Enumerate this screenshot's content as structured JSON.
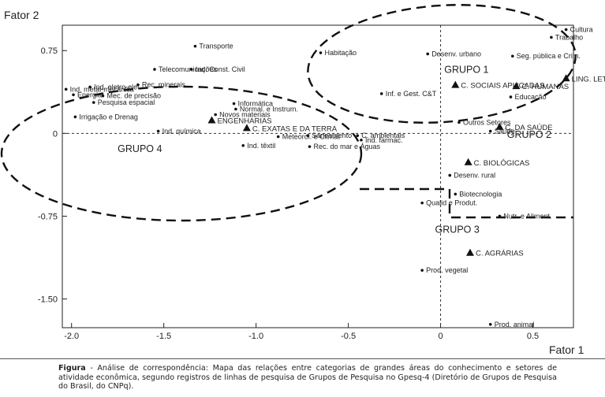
{
  "chart_data": {
    "type": "scatter",
    "ylabel": "Fator 2",
    "xlabel": "Fator 1",
    "xlim": [
      -2.05,
      0.72
    ],
    "ylim": [
      -1.76,
      0.98
    ],
    "xticks": [
      {
        "v": -2.0,
        "label": "-2.0"
      },
      {
        "v": -1.5,
        "label": "-1.5"
      },
      {
        "v": -1.0,
        "label": "-1.0"
      },
      {
        "v": -0.5,
        "label": "-0.5"
      },
      {
        "v": 0.0,
        "label": "0"
      },
      {
        "v": 0.5,
        "label": "0.5"
      }
    ],
    "yticks": [
      {
        "v": 0.75,
        "label": "0.75"
      },
      {
        "v": 0.0,
        "label": "0"
      },
      {
        "v": -0.75,
        "label": "-0.75"
      },
      {
        "v": -1.5,
        "label": "-1.50"
      }
    ],
    "areas": [
      {
        "label": "C. SOCIAIS APLICADAS",
        "x": 0.08,
        "y": 0.44
      },
      {
        "label": "C. HUMANAS",
        "x": 0.41,
        "y": 0.43
      },
      {
        "label": "LING. LETRAS E ARTES",
        "x": 0.68,
        "y": 0.5
      },
      {
        "label": "ENGENHARIAS",
        "x": -1.24,
        "y": 0.12
      },
      {
        "label": "C. EXATAS E DA TERRA",
        "x": -1.05,
        "y": 0.05
      },
      {
        "label": "C. DA SAÚDE",
        "x": 0.32,
        "y": 0.06
      },
      {
        "label": "C. BIOLÓGICAS",
        "x": 0.15,
        "y": -0.26
      },
      {
        "label": "C. AGRÁRIAS",
        "x": 0.16,
        "y": -1.08
      }
    ],
    "sectors": [
      {
        "label": "Cultura",
        "x": 0.68,
        "y": 0.94
      },
      {
        "label": "Trabalho",
        "x": 0.6,
        "y": 0.87
      },
      {
        "label": "Seg. pública e Crim.",
        "x": 0.39,
        "y": 0.7
      },
      {
        "label": "Educação",
        "x": 0.38,
        "y": 0.33
      },
      {
        "label": "Desenv. urbano",
        "x": -0.07,
        "y": 0.72
      },
      {
        "label": "Habitação",
        "x": -0.65,
        "y": 0.73
      },
      {
        "label": "Inf. e Gest. C&T",
        "x": -0.32,
        "y": 0.36
      },
      {
        "label": "Outros Setores",
        "x": 0.1,
        "y": 0.1
      },
      {
        "label": "Saúde",
        "x": 0.27,
        "y": 0.02
      },
      {
        "label": "Desenv. rural",
        "x": 0.05,
        "y": -0.38
      },
      {
        "label": "Biotecnologia",
        "x": 0.08,
        "y": -0.55
      },
      {
        "label": "Qualid e Produt.",
        "x": -0.1,
        "y": -0.63
      },
      {
        "label": "Nutr. e Aliment.",
        "x": 0.32,
        "y": -0.75
      },
      {
        "label": "Prod. vegetal",
        "x": -0.1,
        "y": -1.24
      },
      {
        "label": "Prod. animal",
        "x": 0.27,
        "y": -1.73
      },
      {
        "label": "Transporte",
        "x": -1.33,
        "y": 0.79
      },
      {
        "label": "Ind. Const. Civil",
        "x": -1.35,
        "y": 0.58
      },
      {
        "label": "Telecomunicações",
        "x": -1.55,
        "y": 0.58
      },
      {
        "label": "Rec. minerais",
        "x": -1.64,
        "y": 0.44
      },
      {
        "label": "Ind. metal-mecânica",
        "x": -2.03,
        "y": 0.4
      },
      {
        "label": "Ind. eletro-elet.",
        "x": -1.9,
        "y": 0.42
      },
      {
        "label": "Energia",
        "x": -1.99,
        "y": 0.35
      },
      {
        "label": "Mec. de precisão",
        "x": -1.83,
        "y": 0.34
      },
      {
        "label": "Pesquisa espacial",
        "x": -1.88,
        "y": 0.28
      },
      {
        "label": "Irrigação e Drenag",
        "x": -1.98,
        "y": 0.15
      },
      {
        "label": "Informática",
        "x": -1.12,
        "y": 0.27
      },
      {
        "label": "Normal. e Instrum.",
        "x": -1.11,
        "y": 0.22
      },
      {
        "label": "Novos materiais",
        "x": -1.22,
        "y": 0.17
      },
      {
        "label": "Ind. química",
        "x": -1.53,
        "y": 0.02
      },
      {
        "label": "Ind. têxtil",
        "x": -1.07,
        "y": -0.11
      },
      {
        "label": "Meteorol. e Climat",
        "x": -0.88,
        "y": -0.03
      },
      {
        "label": "Saneamento",
        "x": -0.72,
        "y": -0.02
      },
      {
        "label": "Rec. do mar e Águas",
        "x": -0.71,
        "y": -0.12
      },
      {
        "label": "C. ambientais",
        "x": -0.45,
        "y": -0.02
      },
      {
        "label": "Ind. farmac.",
        "x": -0.43,
        "y": -0.06
      }
    ],
    "groups": [
      {
        "label": "GRUPO 1",
        "x": 0.02,
        "y": 0.55
      },
      {
        "label": "GRUPO 2",
        "x": 0.36,
        "y": -0.04
      },
      {
        "label": "GRUPO 3",
        "x": -0.03,
        "y": -0.9
      },
      {
        "label": "GRUPO 4",
        "x": -1.75,
        "y": -0.17
      }
    ]
  },
  "caption": {
    "label": "Figura",
    "text": " - Análise de correspondência: Mapa das relações entre categorias de grandes áreas do conhecimento e setores de atividade econômica, segundo registros de linhas de pesquisa de Grupos de Pesquisa no Gpesq-4 (Diretório de Grupos de Pesquisa do Brasil, do CNPq)."
  }
}
